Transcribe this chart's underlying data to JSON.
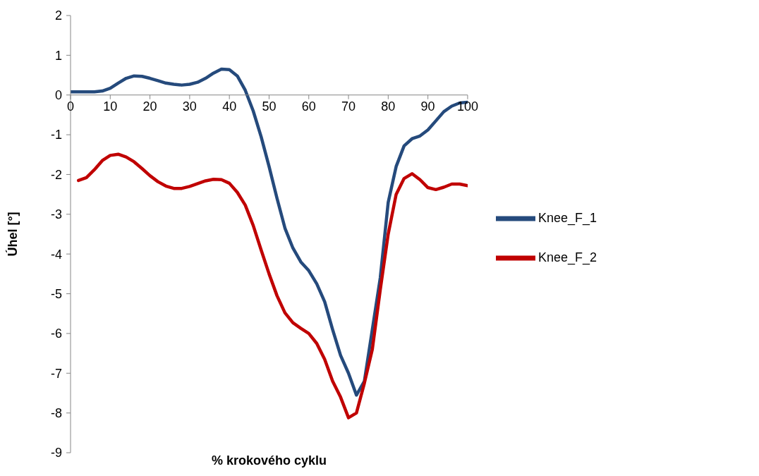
{
  "chart_data": {
    "type": "line",
    "xlabel": "% krokového cyklu",
    "ylabel": "Úhel [°]",
    "x": [
      0,
      2,
      4,
      6,
      8,
      10,
      12,
      14,
      16,
      18,
      20,
      22,
      24,
      26,
      28,
      30,
      32,
      34,
      36,
      38,
      40,
      42,
      44,
      46,
      48,
      50,
      52,
      54,
      56,
      58,
      60,
      62,
      64,
      66,
      68,
      70,
      72,
      74,
      76,
      78,
      80,
      82,
      84,
      86,
      88,
      90,
      92,
      94,
      96,
      98,
      100
    ],
    "series": [
      {
        "name": "Knee_F_1",
        "color": "#254a7c",
        "values": [
          0.08,
          0.08,
          0.08,
          0.08,
          0.1,
          0.17,
          0.3,
          0.42,
          0.48,
          0.47,
          0.42,
          0.36,
          0.3,
          0.27,
          0.25,
          0.27,
          0.32,
          0.42,
          0.55,
          0.65,
          0.64,
          0.48,
          0.12,
          -0.4,
          -1.05,
          -1.8,
          -2.6,
          -3.35,
          -3.85,
          -4.2,
          -4.42,
          -4.75,
          -5.2,
          -5.9,
          -6.55,
          -7.0,
          -7.55,
          -7.2,
          -5.9,
          -4.6,
          -2.7,
          -1.8,
          -1.28,
          -1.1,
          -1.03,
          -0.88,
          -0.65,
          -0.42,
          -0.28,
          -0.2,
          -0.18
        ]
      },
      {
        "name": "Knee_F_2",
        "color": "#c00000",
        "values": [
          null,
          -2.15,
          -2.08,
          -1.88,
          -1.65,
          -1.52,
          -1.49,
          -1.56,
          -1.68,
          -1.85,
          -2.03,
          -2.18,
          -2.29,
          -2.35,
          -2.35,
          -2.3,
          -2.23,
          -2.16,
          -2.12,
          -2.13,
          -2.22,
          -2.45,
          -2.77,
          -3.28,
          -3.9,
          -4.5,
          -5.05,
          -5.48,
          -5.73,
          -5.87,
          -6.0,
          -6.25,
          -6.65,
          -7.2,
          -7.6,
          -8.12,
          -8.0,
          -7.25,
          -6.4,
          -4.9,
          -3.5,
          -2.5,
          -2.1,
          -1.98,
          -2.13,
          -2.33,
          -2.38,
          -2.32,
          -2.24,
          -2.24,
          -2.28
        ]
      }
    ],
    "xlim": [
      0,
      100
    ],
    "xticks": [
      0,
      10,
      20,
      30,
      40,
      50,
      60,
      70,
      80,
      90,
      100
    ],
    "ylim": [
      -9,
      2
    ],
    "yticks": [
      -9,
      -8,
      -7,
      -6,
      -5,
      -4,
      -3,
      -2,
      -1,
      0,
      1,
      2
    ],
    "grid": false,
    "legend": "right",
    "marker": "none",
    "line_style": "solid"
  }
}
